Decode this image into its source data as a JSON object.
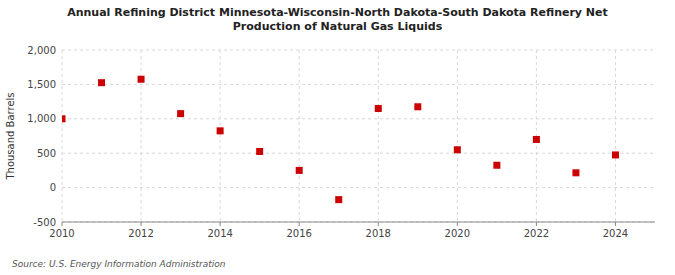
{
  "chart_data": {
    "type": "scatter",
    "title": "Annual Refining District Minnesota-Wisconsin-North Dakota-South Dakota Refinery Net\nProduction of Natural Gas Liquids",
    "ylabel": "Thousand Barrels",
    "source": "Source: U.S. Energy Information Administration",
    "color": "#cc0000",
    "marker": "square",
    "grid": true,
    "xlim": [
      2010,
      2025
    ],
    "ylim": [
      -500,
      2000
    ],
    "xticks": [
      2010,
      2012,
      2014,
      2016,
      2018,
      2020,
      2022,
      2024
    ],
    "yticks": [
      -500,
      0,
      {
        "value": 500,
        "label": "500"
      },
      {
        "value": 1000,
        "label": "1,000"
      },
      {
        "value": 1500,
        "label": "1,500"
      },
      {
        "value": 2000,
        "label": "2,000"
      }
    ],
    "x": [
      2010,
      2011,
      2012,
      2013,
      2014,
      2015,
      2016,
      2017,
      2018,
      2019,
      2020,
      2021,
      2022,
      2023,
      2024
    ],
    "values": [
      1000,
      1525,
      1575,
      1075,
      825,
      525,
      250,
      -175,
      1150,
      1175,
      550,
      325,
      700,
      215,
      475
    ]
  }
}
